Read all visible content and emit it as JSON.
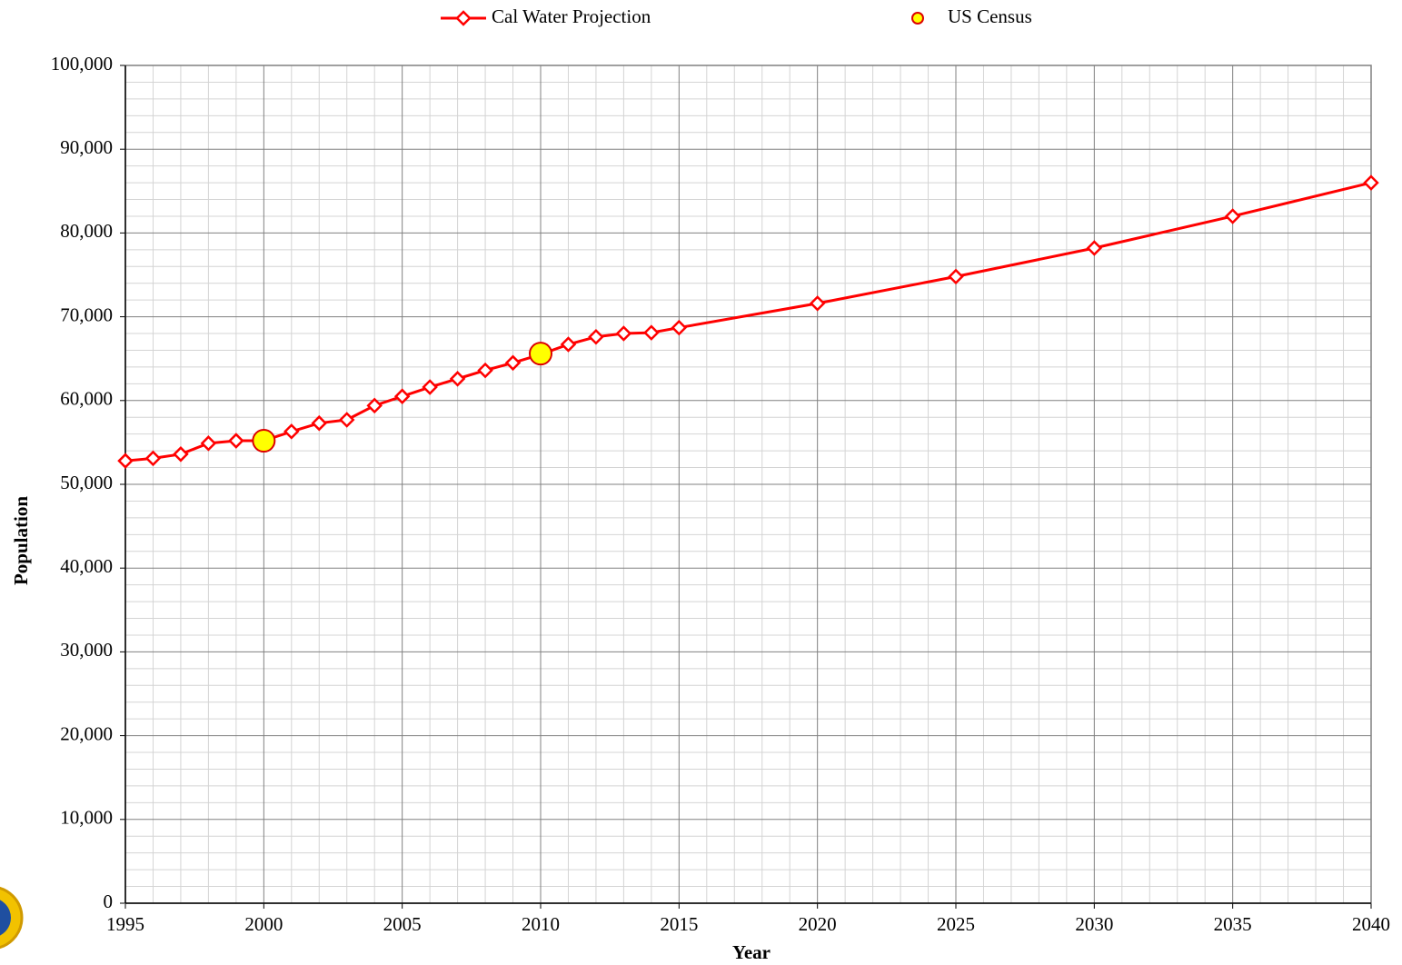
{
  "chart_data": {
    "type": "line",
    "xlabel": "Year",
    "ylabel": "Population",
    "xlim": [
      1995,
      2040
    ],
    "xticks": [
      1995,
      2000,
      2005,
      2010,
      2015,
      2020,
      2025,
      2030,
      2035,
      2040
    ],
    "ylim": [
      0,
      100000
    ],
    "yticks": [
      0,
      {
        "value": 10000,
        "label": "10,000"
      },
      {
        "value": 20000,
        "label": "20,000"
      },
      {
        "value": 30000,
        "label": "30,000"
      },
      {
        "value": 40000,
        "label": "40,000"
      },
      {
        "value": 50000,
        "label": "50,000"
      },
      {
        "value": 60000,
        "label": "60,000"
      },
      {
        "value": 70000,
        "label": "70,000"
      },
      {
        "value": 80000,
        "label": "80,000"
      },
      {
        "value": 90000,
        "label": "90,000"
      },
      {
        "value": 100000,
        "label": "100,000"
      }
    ],
    "grid": true,
    "legend": "top",
    "series": [
      {
        "name": "Cal Water Projection",
        "color": "#ff0000",
        "marker": "diamond",
        "line": true,
        "x": [
          1995,
          1996,
          1997,
          1998,
          1999,
          2000,
          2001,
          2002,
          2003,
          2004,
          2005,
          2006,
          2007,
          2008,
          2009,
          2010,
          2011,
          2012,
          2013,
          2014,
          2015,
          2020,
          2025,
          2030,
          2035,
          2040
        ],
        "values": [
          52800,
          53100,
          53600,
          54900,
          55200,
          55200,
          56300,
          57300,
          57700,
          59400,
          60500,
          61600,
          62600,
          63600,
          64500,
          65500,
          66700,
          67600,
          68000,
          68100,
          68700,
          71600,
          74800,
          78200,
          82000,
          86000
        ]
      },
      {
        "name": "US Census",
        "color": "#ffff00",
        "marker": "circle",
        "line": false,
        "x": [
          2000,
          2010
        ],
        "values": [
          55200,
          65600
        ]
      }
    ]
  }
}
